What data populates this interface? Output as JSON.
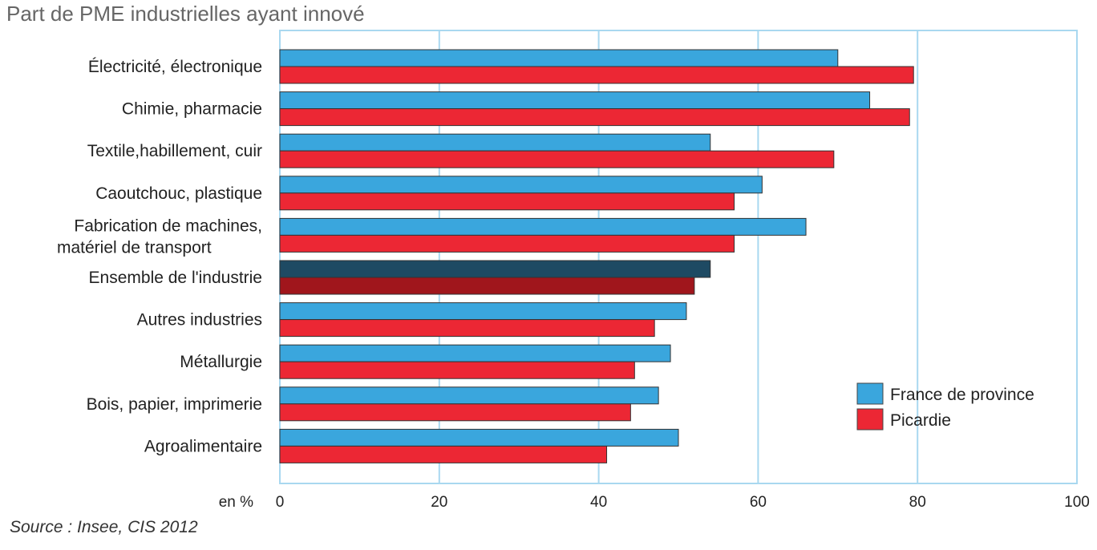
{
  "title": "Part de PME industrielles ayant innové",
  "source": "Source : Insee, CIS 2012",
  "chart_data": {
    "type": "bar",
    "orientation": "horizontal",
    "categories": [
      [
        "Électricité, électronique"
      ],
      [
        "Chimie, pharmacie"
      ],
      [
        "Textile,habillement, cuir"
      ],
      [
        "Caoutchouc, plastique"
      ],
      [
        "Fabrication de machines,",
        "matériel de transport"
      ],
      [
        "Ensemble de l'industrie"
      ],
      [
        "Autres industries"
      ],
      [
        "Métallurgie"
      ],
      [
        "Bois, papier, imprimerie"
      ],
      [
        "Agroalimentaire"
      ]
    ],
    "series": [
      {
        "name": "France de province",
        "color": "#3aa6dd",
        "highlight_color": "#1e4a63",
        "values": [
          70,
          74,
          54,
          60.5,
          66,
          54,
          51,
          49,
          47.5,
          50
        ]
      },
      {
        "name": "Picardie",
        "color": "#ec2734",
        "highlight_color": "#a0161c",
        "values": [
          79.5,
          79,
          69.5,
          57,
          57,
          52,
          47,
          44.5,
          44,
          41
        ]
      }
    ],
    "highlight_category_index": 5,
    "xlabel": "en %",
    "xlim": [
      0,
      100
    ],
    "xticks": [
      0,
      20,
      40,
      60,
      80,
      100
    ],
    "grid": true,
    "legend_position": "bottom-right"
  }
}
